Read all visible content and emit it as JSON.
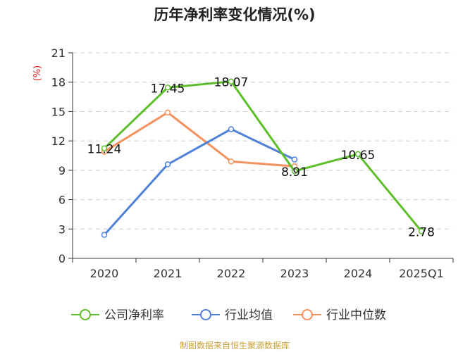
{
  "chart_data": {
    "type": "line",
    "title": "历年净利率变化情况(%)",
    "ylabel": "(%)",
    "categories": [
      "2020",
      "2021",
      "2022",
      "2023",
      "2024",
      "2025Q1"
    ],
    "ylim": [
      0,
      21
    ],
    "yticks": [
      0,
      3,
      6,
      9,
      12,
      15,
      18,
      21
    ],
    "grid": true,
    "legend_position": "bottom",
    "series": [
      {
        "name": "公司净利率",
        "color": "#5cbf2a",
        "values": [
          11.24,
          17.45,
          18.07,
          8.91,
          10.65,
          2.78
        ],
        "labels": [
          "11.24",
          "17.45",
          "18.07",
          "8.91",
          "10.65",
          "2.78"
        ]
      },
      {
        "name": "行业均值",
        "color": "#4f81d8",
        "values": [
          2.4,
          9.6,
          13.2,
          10.1,
          null,
          null
        ]
      },
      {
        "name": "行业中位数",
        "color": "#f5915d",
        "values": [
          10.9,
          14.9,
          9.9,
          9.4,
          null,
          null
        ]
      }
    ]
  },
  "colors": {
    "axis": "#333333",
    "grid": "#cccccc",
    "ylabel": "#e02020",
    "source": "#c8a038"
  },
  "source_text": "制图数据来自恒生聚源数据库"
}
